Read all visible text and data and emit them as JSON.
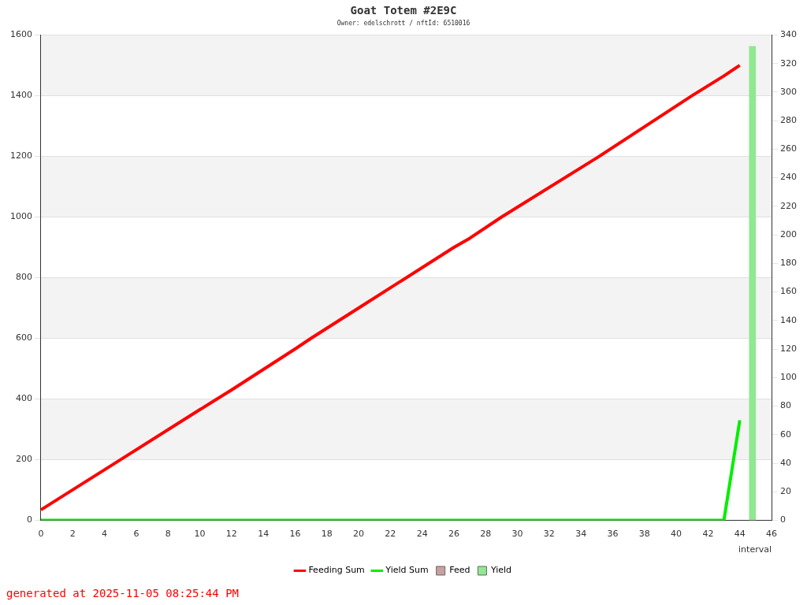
{
  "chart_data": {
    "type": "line",
    "title": "Goat Totem #2E9C",
    "subtitle": "Owner: edelschrott / nftId: 6510016",
    "xlabel": "interval",
    "xlim": [
      0,
      46
    ],
    "xticks": [
      0,
      2,
      4,
      6,
      8,
      10,
      12,
      14,
      16,
      18,
      20,
      22,
      24,
      26,
      28,
      30,
      32,
      34,
      36,
      38,
      40,
      42,
      44,
      46
    ],
    "ylim": [
      0,
      1600
    ],
    "yticks": [
      0,
      200,
      400,
      600,
      800,
      1000,
      1200,
      1400,
      1600
    ],
    "y2lim": [
      0,
      340
    ],
    "y2ticks": [
      0,
      20,
      40,
      60,
      80,
      100,
      120,
      140,
      160,
      180,
      200,
      220,
      240,
      260,
      280,
      300,
      320,
      340
    ],
    "grid": "y",
    "legend": "bottom",
    "marker": "none",
    "series": [
      {
        "name": "Feeding Sum",
        "color": "#ff0000",
        "axis": "y",
        "x": [
          0,
          5,
          10,
          12,
          16,
          17,
          20,
          26,
          27,
          29,
          35,
          41,
          43,
          44
        ],
        "values": [
          35,
          200,
          365,
          430,
          565,
          600,
          700,
          900,
          930,
          1000,
          1195,
          1400,
          1465,
          1500
        ]
      },
      {
        "name": "Yield Sum",
        "color": "#00ee00",
        "axis": "y",
        "x": [
          0,
          43,
          44
        ],
        "values": [
          0,
          0,
          330
        ]
      },
      {
        "name": "Feed",
        "type": "bar",
        "color": "#c8a0a0",
        "axis": "y2"
      },
      {
        "name": "Yield",
        "type": "bar",
        "color": "#90e890",
        "axis": "y2",
        "x": [
          44.6
        ],
        "values": [
          332
        ]
      }
    ],
    "annotations": [
      "generated at 2025-11-05 08:25:44 PM"
    ]
  }
}
